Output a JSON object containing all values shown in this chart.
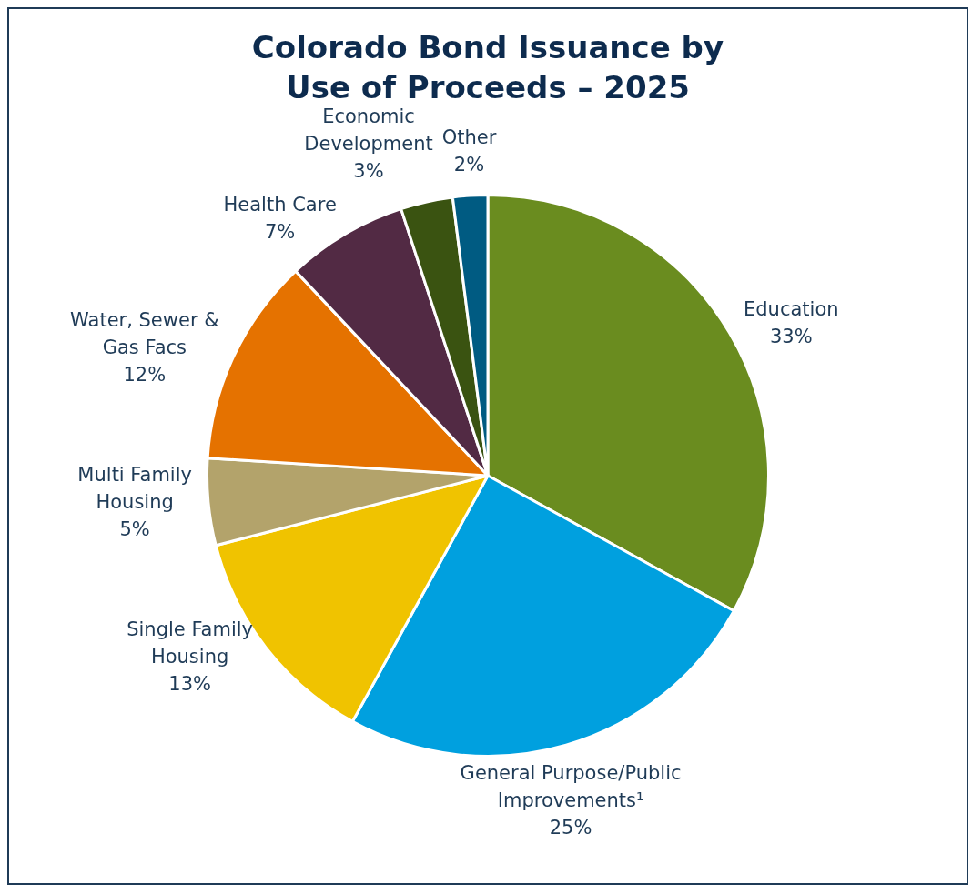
{
  "chart_data": {
    "type": "pie",
    "title": "Colorado Bond Issuance by Use of Proceeds – 2025",
    "categories": [
      "Education",
      "General Purpose/Public Improvements¹",
      "Single Family Housing",
      "Multi Family Housing",
      "Water, Sewer & Gas Facs",
      "Health Care",
      "Economic Development",
      "Other"
    ],
    "values": [
      33,
      25,
      13,
      5,
      12,
      7,
      3,
      2
    ],
    "value_labels": [
      "33%",
      "25%",
      "13%",
      "5%",
      "12%",
      "7%",
      "3%",
      "2%"
    ],
    "colors": [
      "#6a8c1f",
      "#00a0df",
      "#f0c300",
      "#b3a36b",
      "#e57200",
      "#522a44",
      "#3a5311",
      "#005b82"
    ],
    "legend": false
  }
}
